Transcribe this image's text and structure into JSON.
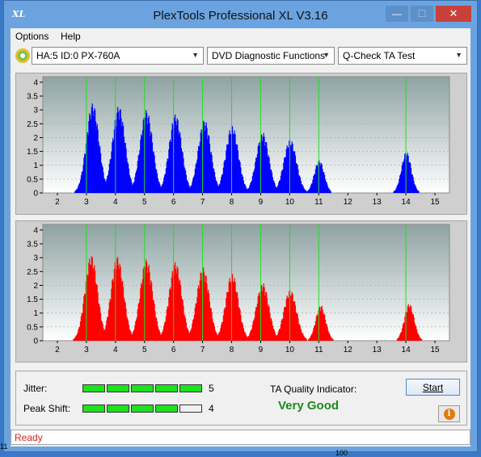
{
  "window": {
    "title": "PlexTools Professional XL V3.16",
    "icon_label": "XL",
    "buttons": {
      "minimize": "—",
      "maximize": "☐",
      "close": "✕"
    }
  },
  "menu": {
    "options": "Options",
    "help": "Help"
  },
  "toolbar": {
    "drive": "HA:5 ID:0  PX-760A",
    "function": "DVD Diagnostic Functions",
    "test": "Q-Check TA Test"
  },
  "charts": {
    "x_ticks": [
      "2",
      "3",
      "4",
      "5",
      "6",
      "7",
      "8",
      "9",
      "10",
      "11",
      "12",
      "13",
      "14",
      "15"
    ],
    "y_ticks": [
      "0",
      "0.5",
      "1",
      "1.5",
      "2",
      "2.5",
      "3",
      "3.5",
      "4"
    ],
    "marker_positions": [
      3,
      4,
      5,
      6,
      7,
      8,
      9,
      10,
      11,
      14
    ],
    "colors": {
      "top": "#0000ff",
      "bottom": "#ff0000",
      "marker": "#22dd22"
    }
  },
  "chart_data": [
    {
      "type": "area",
      "name": "top-histogram",
      "x_range": [
        1.5,
        15.5
      ],
      "ylim": [
        0,
        4.2
      ],
      "x_ticks": [
        2,
        3,
        4,
        5,
        6,
        7,
        8,
        9,
        10,
        11,
        12,
        13,
        14,
        15
      ],
      "y_ticks": [
        0,
        0.5,
        1,
        1.5,
        2,
        2.5,
        3,
        3.5,
        4
      ],
      "peaks": [
        {
          "center": 3.2,
          "height": 3.25
        },
        {
          "center": 4.1,
          "height": 3.15
        },
        {
          "center": 5.05,
          "height": 3.0
        },
        {
          "center": 6.05,
          "height": 2.85
        },
        {
          "center": 7.05,
          "height": 2.65
        },
        {
          "center": 8.0,
          "height": 2.45
        },
        {
          "center": 9.05,
          "height": 2.2
        },
        {
          "center": 10.0,
          "height": 1.95
        },
        {
          "center": 11.0,
          "height": 1.2
        },
        {
          "center": 14.0,
          "height": 1.5
        }
      ]
    },
    {
      "type": "area",
      "name": "bottom-histogram",
      "x_range": [
        1.5,
        15.5
      ],
      "ylim": [
        0,
        4.2
      ],
      "x_ticks": [
        2,
        3,
        4,
        5,
        6,
        7,
        8,
        9,
        10,
        11,
        12,
        13,
        14,
        15
      ],
      "y_ticks": [
        0,
        0.5,
        1,
        1.5,
        2,
        2.5,
        3,
        3.5,
        4
      ],
      "peaks": [
        {
          "center": 3.15,
          "height": 3.1
        },
        {
          "center": 4.05,
          "height": 3.05
        },
        {
          "center": 5.05,
          "height": 2.95
        },
        {
          "center": 6.05,
          "height": 2.85
        },
        {
          "center": 7.0,
          "height": 2.65
        },
        {
          "center": 8.0,
          "height": 2.45
        },
        {
          "center": 9.05,
          "height": 2.1
        },
        {
          "center": 10.0,
          "height": 1.85
        },
        {
          "center": 11.05,
          "height": 1.3
        },
        {
          "center": 14.1,
          "height": 1.35
        }
      ]
    }
  ],
  "results": {
    "jitter_label": "Jitter:",
    "jitter_value": "5",
    "jitter_level": 5,
    "peak_shift_label": "Peak Shift:",
    "peak_shift_value": "4",
    "peak_shift_level": 4,
    "meter_segments": 5,
    "ta_label": "TA Quality Indicator:",
    "ta_value": "Very Good",
    "start_label": "Start",
    "info_glyph": "i"
  },
  "status": {
    "text": "Ready"
  },
  "desktop": {
    "left_fragment": "11",
    "right_fragment": "100"
  }
}
